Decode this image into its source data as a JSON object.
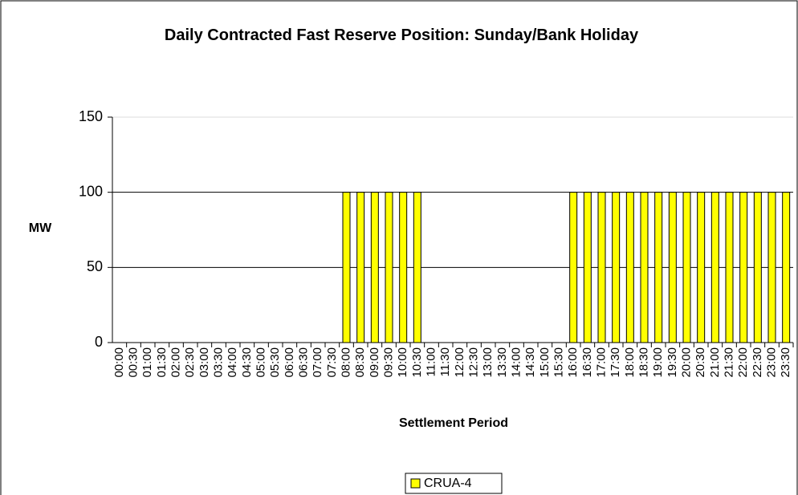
{
  "chart_data": {
    "type": "bar",
    "title": "Daily Contracted Fast Reserve Position: Sunday/Bank Holiday",
    "x_label": "Settlement Period",
    "y_label": "MW",
    "categories": [
      "00:00",
      "00:30",
      "01:00",
      "01:30",
      "02:00",
      "02:30",
      "03:00",
      "03:30",
      "04:00",
      "04:30",
      "05:00",
      "05:30",
      "06:00",
      "06:30",
      "07:00",
      "07:30",
      "08:00",
      "08:30",
      "09:00",
      "09:30",
      "10:00",
      "10:30",
      "11:00",
      "11:30",
      "12:00",
      "12:30",
      "13:00",
      "13:30",
      "14:00",
      "14:30",
      "15:00",
      "15:30",
      "16:00",
      "16:30",
      "17:00",
      "17:30",
      "18:00",
      "18:30",
      "19:00",
      "19:30",
      "20:00",
      "20:30",
      "21:00",
      "21:30",
      "22:00",
      "22:30",
      "23:00",
      "23:30"
    ],
    "series": [
      {
        "name": "CRUA-4",
        "color": "#ffff00",
        "values": [
          0,
          0,
          0,
          0,
          0,
          0,
          0,
          0,
          0,
          0,
          0,
          0,
          0,
          0,
          0,
          0,
          100,
          100,
          100,
          100,
          100,
          100,
          0,
          0,
          0,
          0,
          0,
          0,
          0,
          0,
          0,
          0,
          100,
          100,
          100,
          100,
          100,
          100,
          100,
          100,
          100,
          100,
          100,
          100,
          100,
          100,
          100,
          100
        ]
      }
    ],
    "ylim": [
      0,
      150
    ],
    "yticks": [
      0,
      50,
      100,
      150
    ],
    "grid": true,
    "legend": "bottom"
  }
}
